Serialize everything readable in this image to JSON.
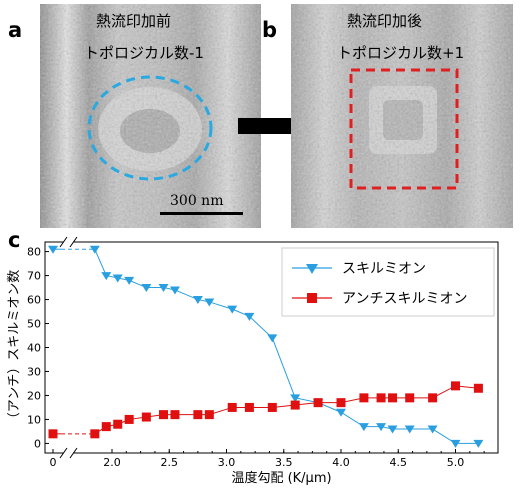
{
  "panels": {
    "a": {
      "letter": "a",
      "line1": "熱流印加前",
      "line2": "トポロジカル数-1",
      "scale_label": "300 nm",
      "marker_color": "#2aa9e0"
    },
    "b": {
      "letter": "b",
      "line1": "熱流印加後",
      "line2": "トポロジカル数+1",
      "marker_color": "#e02020"
    },
    "c": {
      "letter": "c"
    }
  },
  "chart_data": {
    "type": "line",
    "xlabel": "温度勾配 (K/μm)",
    "ylabel": "（アンチ）スキルミオン数",
    "x_ticks": [
      "0",
      "2.0",
      "2.5",
      "3.0",
      "3.5",
      "4.0",
      "4.5",
      "5.0"
    ],
    "y_ticks": [
      "0",
      "10",
      "20",
      "30",
      "40",
      "50",
      "60",
      "70",
      "80"
    ],
    "ylim": [
      -4,
      84
    ],
    "axis_break": "between 0 and 2.0",
    "legend_position": "top-right",
    "series": [
      {
        "name": "スキルミオン",
        "color": "#2a9fe0",
        "marker": "triangle-down",
        "points": [
          [
            0,
            81
          ],
          [
            0.2,
            81
          ],
          [
            1.85,
            81
          ],
          [
            1.95,
            70
          ],
          [
            2.05,
            69
          ],
          [
            2.15,
            68
          ],
          [
            2.3,
            65
          ],
          [
            2.45,
            65
          ],
          [
            2.55,
            64
          ],
          [
            2.75,
            60
          ],
          [
            2.85,
            59
          ],
          [
            3.05,
            56
          ],
          [
            3.2,
            53
          ],
          [
            3.4,
            44
          ],
          [
            3.6,
            19
          ],
          [
            3.8,
            17
          ],
          [
            4.0,
            13
          ],
          [
            4.2,
            7
          ],
          [
            4.35,
            7
          ],
          [
            4.45,
            6
          ],
          [
            4.6,
            6
          ],
          [
            4.8,
            6
          ],
          [
            5.0,
            0
          ],
          [
            5.2,
            0
          ]
        ]
      },
      {
        "name": "アンチスキルミオン",
        "color": "#e01010",
        "marker": "square",
        "points": [
          [
            0,
            4
          ],
          [
            0.2,
            4
          ],
          [
            1.85,
            4
          ],
          [
            1.95,
            7
          ],
          [
            2.05,
            8
          ],
          [
            2.15,
            10
          ],
          [
            2.3,
            11
          ],
          [
            2.45,
            12
          ],
          [
            2.55,
            12
          ],
          [
            2.75,
            12
          ],
          [
            2.85,
            12
          ],
          [
            3.05,
            15
          ],
          [
            3.2,
            15
          ],
          [
            3.4,
            15
          ],
          [
            3.6,
            16
          ],
          [
            3.8,
            17
          ],
          [
            4.0,
            17
          ],
          [
            4.2,
            19
          ],
          [
            4.35,
            19
          ],
          [
            4.45,
            19
          ],
          [
            4.6,
            19
          ],
          [
            4.8,
            19
          ],
          [
            5.0,
            24
          ],
          [
            5.2,
            23
          ]
        ]
      }
    ]
  }
}
